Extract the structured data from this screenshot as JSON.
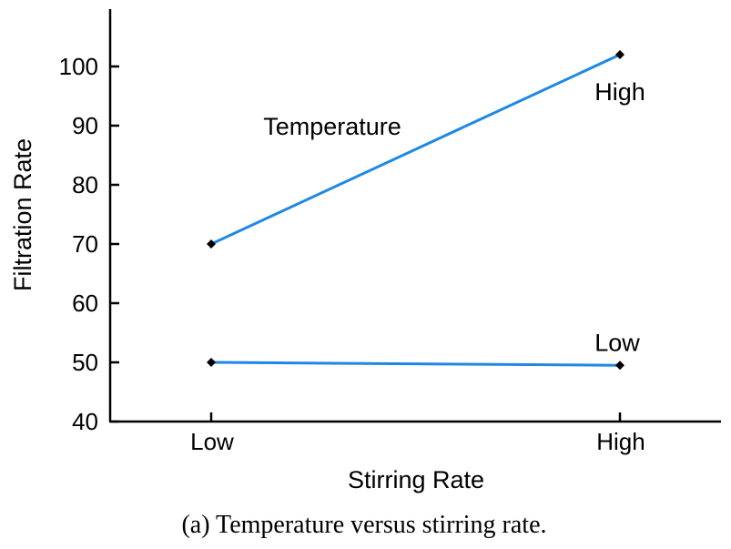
{
  "chart_data": {
    "type": "line",
    "xlabel": "Stirring Rate",
    "ylabel": "Filtration Rate",
    "categories": [
      "Low",
      "High"
    ],
    "ylim": [
      40,
      110
    ],
    "yticks": [
      40,
      50,
      60,
      70,
      80,
      90,
      100
    ],
    "legend_title": "Temperature",
    "series": [
      {
        "name": "High",
        "values": [
          70,
          102
        ],
        "color": "#1e88e5"
      },
      {
        "name": "Low",
        "values": [
          50,
          49.5
        ],
        "color": "#1e88e5"
      }
    ],
    "grid": false
  },
  "caption": "(a) Temperature versus stirring rate."
}
